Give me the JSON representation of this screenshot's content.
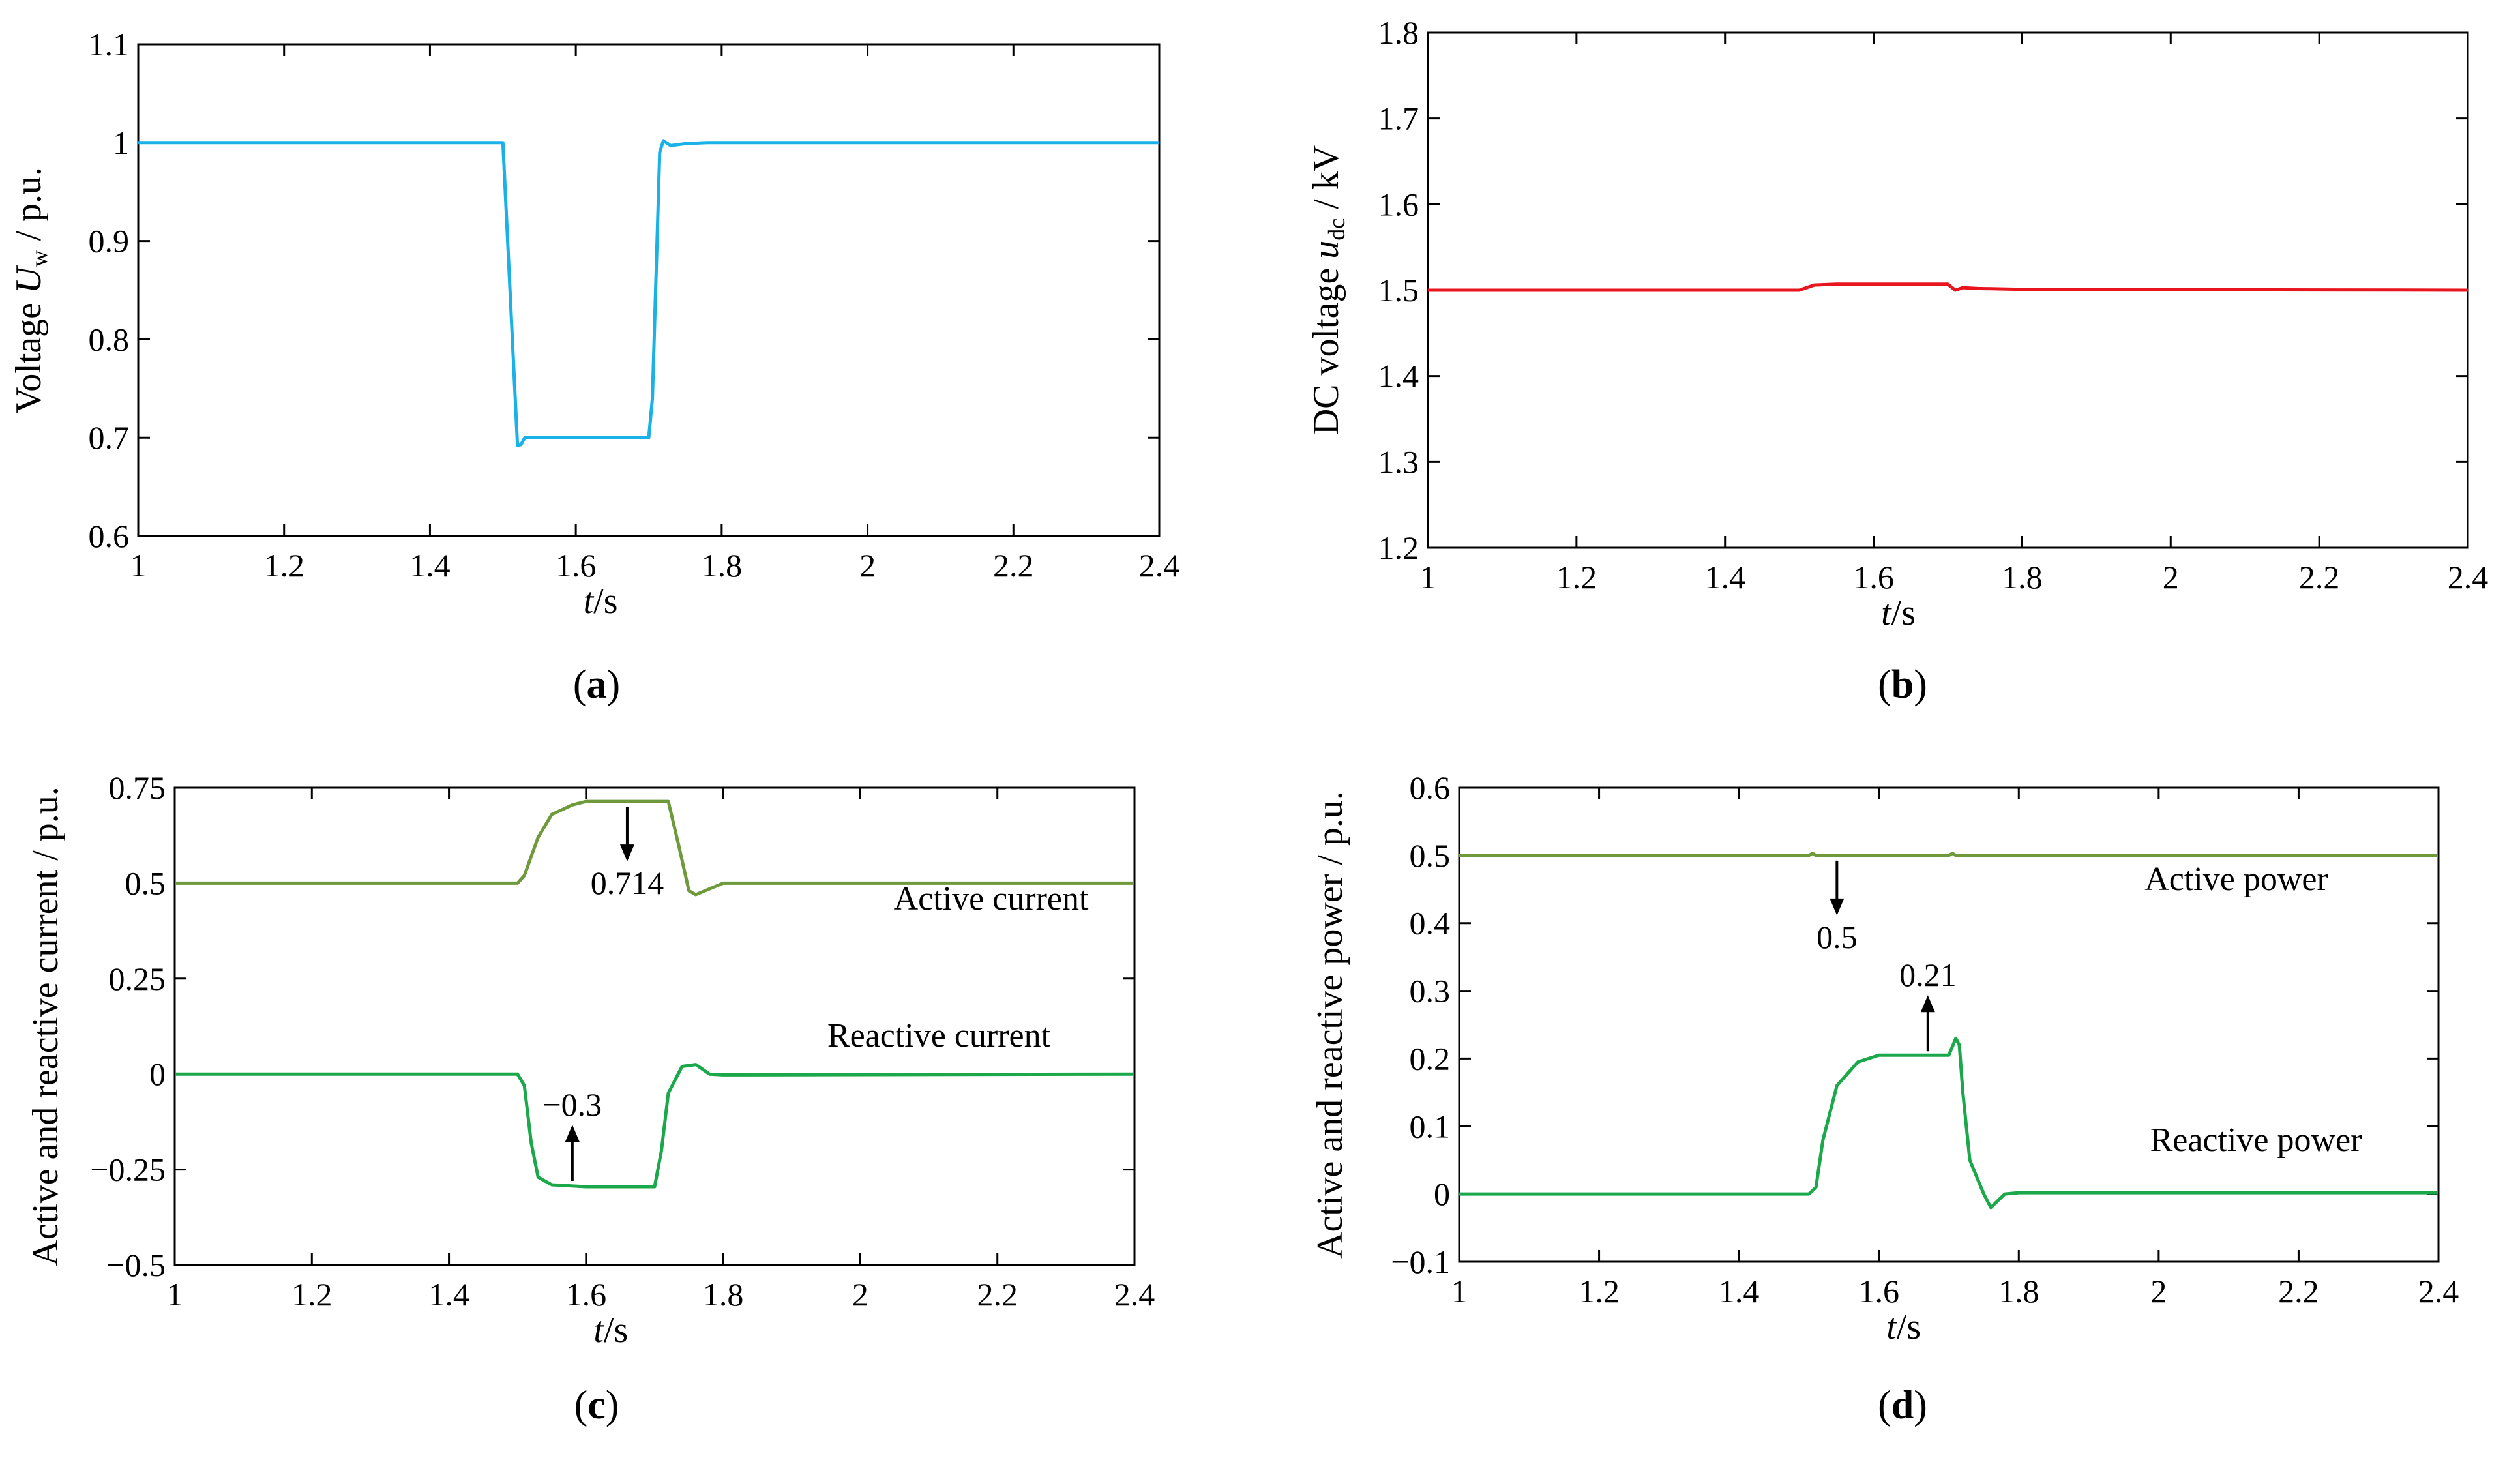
{
  "chart_data": [
    {
      "type": "line",
      "caption": "a",
      "title": "",
      "xlabel": {
        "italic": "t",
        "rest": "/s"
      },
      "ylabel": {
        "before": "Voltage ",
        "italic": "U",
        "sub": "w",
        "after": " / p.u."
      },
      "xlim": [
        1,
        2.4
      ],
      "ylim": [
        0.6,
        1.1
      ],
      "xticks": [
        "1",
        "1.2",
        "1.4",
        "1.6",
        "1.8",
        "2",
        "2.2",
        "2.4"
      ],
      "yticks": [
        "0.6",
        "0.7",
        "0.8",
        "0.9",
        "1",
        "1.1"
      ],
      "series": [
        {
          "name": "Uw",
          "color": "#1ab0e8",
          "x": [
            1,
            1.5,
            1.52,
            1.525,
            1.53,
            1.55,
            1.7,
            1.705,
            1.715,
            1.72,
            1.73,
            1.75,
            1.78,
            2.4
          ],
          "y": [
            1,
            1,
            0.692,
            0.693,
            0.7,
            0.7,
            0.7,
            0.74,
            0.99,
            1.002,
            0.997,
            0.999,
            1,
            1
          ]
        }
      ],
      "annotations": []
    },
    {
      "type": "line",
      "caption": "b",
      "title": "",
      "xlabel": {
        "italic": "t",
        "rest": "/s"
      },
      "ylabel": {
        "before": "DC voltage ",
        "italic": "u",
        "sub": "dc",
        "after": " / kV"
      },
      "xlim": [
        1,
        2.4
      ],
      "ylim": [
        1.2,
        1.8
      ],
      "xticks": [
        "1",
        "1.2",
        "1.4",
        "1.6",
        "1.8",
        "2",
        "2.2",
        "2.4"
      ],
      "yticks": [
        "1.2",
        "1.3",
        "1.4",
        "1.5",
        "1.6",
        "1.7",
        "1.8"
      ],
      "series": [
        {
          "name": "udc",
          "color": "#e8141e",
          "x": [
            1,
            1.5,
            1.52,
            1.55,
            1.7,
            1.71,
            1.72,
            1.74,
            1.8,
            2.4
          ],
          "y": [
            1.5,
            1.5,
            1.506,
            1.507,
            1.507,
            1.5,
            1.503,
            1.502,
            1.501,
            1.5
          ]
        }
      ],
      "annotations": []
    },
    {
      "type": "line",
      "caption": "c",
      "title": "",
      "xlabel": {
        "italic": "t",
        "rest": "/s"
      },
      "ylabel": {
        "before": "Active and reactive current / p.u.",
        "italic": "",
        "sub": "",
        "after": ""
      },
      "xlim": [
        1,
        2.4
      ],
      "ylim": [
        -0.5,
        0.75
      ],
      "xticks": [
        "1",
        "1.2",
        "1.4",
        "1.6",
        "1.8",
        "2",
        "2.2",
        "2.4"
      ],
      "yticks": [
        "−0.5",
        "−0.25",
        "0",
        "0.25",
        "0.5",
        "0.75"
      ],
      "series": [
        {
          "name": "Active current",
          "color": "#6f9a3c",
          "x": [
            1,
            1.5,
            1.51,
            1.53,
            1.55,
            1.58,
            1.6,
            1.7,
            1.72,
            1.735,
            1.75,
            1.76,
            1.8,
            2.4
          ],
          "y": [
            0.5,
            0.5,
            0.52,
            0.62,
            0.68,
            0.705,
            0.714,
            0.714,
            0.714,
            0.6,
            0.48,
            0.47,
            0.5,
            0.5
          ]
        },
        {
          "name": "Reactive current",
          "color": "#1aa84a",
          "x": [
            1,
            1.5,
            1.51,
            1.52,
            1.53,
            1.55,
            1.6,
            1.7,
            1.71,
            1.72,
            1.74,
            1.76,
            1.78,
            1.8,
            2.4
          ],
          "y": [
            0,
            0,
            -0.03,
            -0.18,
            -0.27,
            -0.29,
            -0.295,
            -0.295,
            -0.2,
            -0.05,
            0.02,
            0.025,
            0.0,
            -0.002,
            0
          ]
        }
      ],
      "series_labels": [
        "Active current",
        "Reactive current"
      ],
      "annotations": [
        {
          "text": "0.714",
          "x": 1.66,
          "y": 0.714,
          "dir": "down"
        },
        {
          "text": "−0.3",
          "x": 1.58,
          "y": -0.29,
          "dir": "up"
        }
      ]
    },
    {
      "type": "line",
      "caption": "d",
      "title": "",
      "xlabel": {
        "italic": "t",
        "rest": "/s"
      },
      "ylabel": {
        "before": "Active and reactive power / p.u.",
        "italic": "",
        "sub": "",
        "after": ""
      },
      "xlim": [
        1,
        2.4
      ],
      "ylim": [
        -0.1,
        0.6
      ],
      "xticks": [
        "1",
        "1.2",
        "1.4",
        "1.6",
        "1.8",
        "2",
        "2.2",
        "2.4"
      ],
      "yticks": [
        "−0.1",
        "0",
        "0.1",
        "0.2",
        "0.3",
        "0.4",
        "0.5",
        "0.6"
      ],
      "series": [
        {
          "name": "Active power",
          "color": "#6f9a3c",
          "x": [
            1,
            1.5,
            1.505,
            1.51,
            1.7,
            1.705,
            1.71,
            2.4
          ],
          "y": [
            0.5,
            0.5,
            0.503,
            0.5,
            0.5,
            0.503,
            0.5,
            0.5
          ]
        },
        {
          "name": "Reactive power",
          "color": "#1aa84a",
          "x": [
            1,
            1.5,
            1.51,
            1.52,
            1.54,
            1.57,
            1.6,
            1.7,
            1.71,
            1.715,
            1.72,
            1.73,
            1.75,
            1.76,
            1.78,
            1.8,
            2.4
          ],
          "y": [
            0,
            0,
            0.01,
            0.08,
            0.16,
            0.195,
            0.205,
            0.205,
            0.23,
            0.22,
            0.15,
            0.05,
            0.0,
            -0.02,
            0.0,
            0.002,
            0.002
          ]
        }
      ],
      "series_labels": [
        "Active power",
        "Reactive power"
      ],
      "annotations": [
        {
          "text": "0.5",
          "x": 1.54,
          "y": 0.5,
          "dir": "down"
        },
        {
          "text": "0.21",
          "x": 1.67,
          "y": 0.205,
          "dir": "up"
        }
      ]
    }
  ]
}
